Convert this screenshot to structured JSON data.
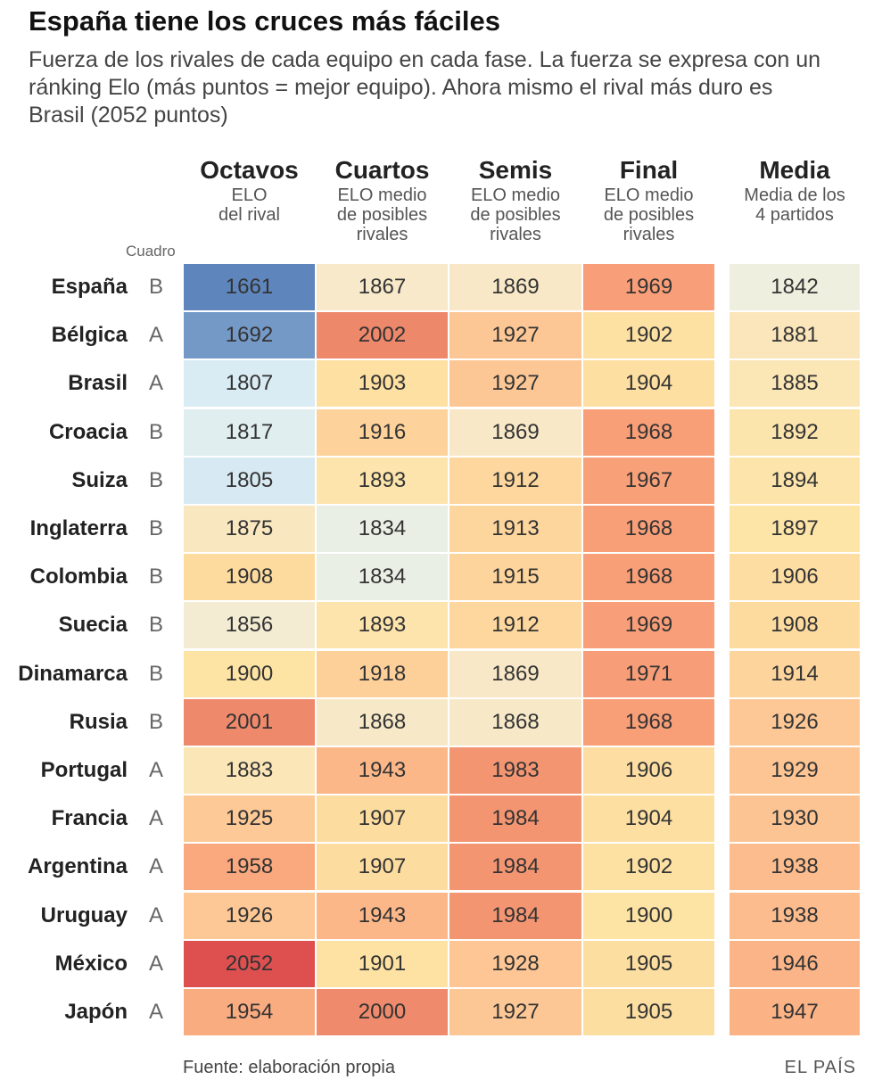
{
  "title": "España tiene los cruces más fáciles",
  "subtitle": "Fuerza de los rivales de cada equipo en cada fase. La fuerza se expresa con un ránking Elo (más puntos = mejor equipo). Ahora mismo el rival más duro es Brasil (2052 puntos)",
  "cuadro_label": "Cuadro",
  "source": "Fuente: elaboración propia",
  "brand": "EL PAÍS",
  "chart_data": {
    "type": "heatmap",
    "title": "España tiene los cruces más fáciles",
    "columns": [
      {
        "key": "octavos",
        "title": "Octavos",
        "subtitle_lines": [
          "ELO",
          "del rival"
        ]
      },
      {
        "key": "cuartos",
        "title": "Cuartos",
        "subtitle_lines": [
          "ELO medio",
          "de posibles",
          "rivales"
        ]
      },
      {
        "key": "semis",
        "title": "Semis",
        "subtitle_lines": [
          "ELO medio",
          "de posibles",
          "rivales"
        ]
      },
      {
        "key": "final",
        "title": "Final",
        "subtitle_lines": [
          "ELO medio",
          "de posibles",
          "rivales"
        ]
      },
      {
        "key": "media",
        "title": "Media",
        "subtitle_lines": [
          "Media de los",
          "4 partidos"
        ]
      }
    ],
    "color_scale": {
      "stops": [
        {
          "value": 1661,
          "color": "#5e86bd"
        },
        {
          "value": 1760,
          "color": "#a9c4dc"
        },
        {
          "value": 1810,
          "color": "#dcedf4"
        },
        {
          "value": 1840,
          "color": "#eef0e2"
        },
        {
          "value": 1870,
          "color": "#f8e8c6"
        },
        {
          "value": 1900,
          "color": "#fde3a4"
        },
        {
          "value": 1930,
          "color": "#fdc493"
        },
        {
          "value": 1965,
          "color": "#f9a179"
        },
        {
          "value": 2000,
          "color": "#ef8a6c"
        },
        {
          "value": 2052,
          "color": "#de5050"
        }
      ]
    },
    "rows": [
      {
        "team": "España",
        "cuadro": "B",
        "values": [
          1661,
          1867,
          1869,
          1969,
          1842
        ]
      },
      {
        "team": "Bélgica",
        "cuadro": "A",
        "values": [
          1692,
          2002,
          1927,
          1902,
          1881
        ]
      },
      {
        "team": "Brasil",
        "cuadro": "A",
        "values": [
          1807,
          1903,
          1927,
          1904,
          1885
        ]
      },
      {
        "team": "Croacia",
        "cuadro": "B",
        "values": [
          1817,
          1916,
          1869,
          1968,
          1892
        ]
      },
      {
        "team": "Suiza",
        "cuadro": "B",
        "values": [
          1805,
          1893,
          1912,
          1967,
          1894
        ]
      },
      {
        "team": "Inglaterra",
        "cuadro": "B",
        "values": [
          1875,
          1834,
          1913,
          1968,
          1897
        ]
      },
      {
        "team": "Colombia",
        "cuadro": "B",
        "values": [
          1908,
          1834,
          1915,
          1968,
          1906
        ]
      },
      {
        "team": "Suecia",
        "cuadro": "B",
        "values": [
          1856,
          1893,
          1912,
          1969,
          1908
        ]
      },
      {
        "team": "Dinamarca",
        "cuadro": "B",
        "values": [
          1900,
          1918,
          1869,
          1971,
          1914
        ]
      },
      {
        "team": "Rusia",
        "cuadro": "B",
        "values": [
          2001,
          1868,
          1868,
          1968,
          1926
        ]
      },
      {
        "team": "Portugal",
        "cuadro": "A",
        "values": [
          1883,
          1943,
          1983,
          1906,
          1929
        ]
      },
      {
        "team": "Francia",
        "cuadro": "A",
        "values": [
          1925,
          1907,
          1984,
          1904,
          1930
        ]
      },
      {
        "team": "Argentina",
        "cuadro": "A",
        "values": [
          1958,
          1907,
          1984,
          1902,
          1938
        ]
      },
      {
        "team": "Uruguay",
        "cuadro": "A",
        "values": [
          1926,
          1943,
          1984,
          1900,
          1938
        ]
      },
      {
        "team": "México",
        "cuadro": "A",
        "values": [
          2052,
          1901,
          1928,
          1905,
          1946
        ]
      },
      {
        "team": "Japón",
        "cuadro": "A",
        "values": [
          1954,
          2000,
          1927,
          1905,
          1947
        ]
      }
    ]
  }
}
